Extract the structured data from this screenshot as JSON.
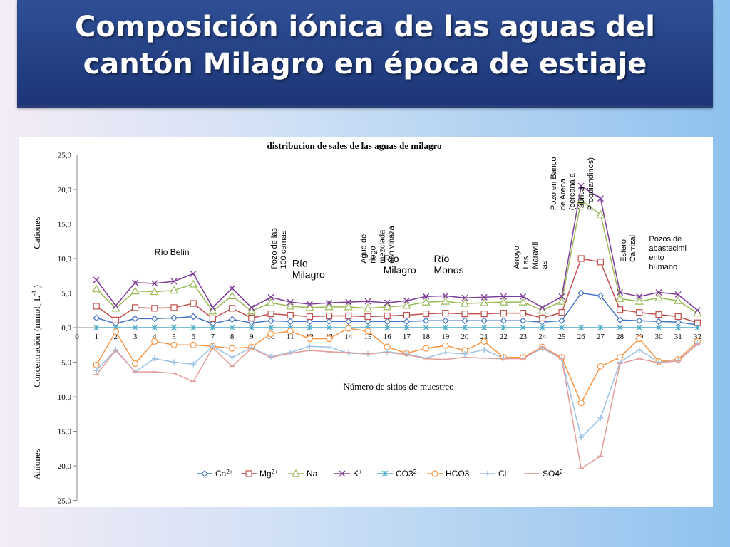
{
  "slide": {
    "title_line1": "Composición iónica de las aguas del",
    "title_line2": "cantón Milagro en época de estiaje"
  },
  "chart_data": {
    "type": "line",
    "title": "distribucion de sales de las aguas de milagro",
    "xlabel": "Número  de sitios de muestreo",
    "ylabel": "Concentración (mmolc L-1 )",
    "ylabel_top": "Cationes",
    "ylabel_bottom": "Aniones",
    "x": [
      1,
      2,
      3,
      4,
      5,
      6,
      7,
      8,
      9,
      10,
      11,
      12,
      13,
      14,
      15,
      16,
      17,
      18,
      19,
      20,
      21,
      22,
      23,
      24,
      25,
      26,
      27,
      28,
      29,
      30,
      31,
      32
    ],
    "x_ticks": [
      "0",
      "1",
      "2",
      "3",
      "4",
      "5",
      "6",
      "7",
      "8",
      "9",
      "10",
      "11",
      "12",
      "13",
      "14",
      "15",
      "16",
      "17",
      "18",
      "19",
      "20",
      "21",
      "22",
      "23",
      "24",
      "25",
      "26",
      "27",
      "28",
      "29",
      "30",
      "31",
      "32"
    ],
    "y_ticks": [
      "25,0",
      "20,0",
      "15,0",
      "10,0",
      "5,0",
      "0,0",
      "5,0",
      "10,0",
      "15,0",
      "20,0",
      "25,0"
    ],
    "ylim": [
      -25,
      25
    ],
    "legend_position": "bottom",
    "series": [
      {
        "name": "Ca",
        "sup": "2+",
        "color": "#4472c4",
        "marker": "diamond",
        "values": [
          1.4,
          0.6,
          1.3,
          1.3,
          1.4,
          1.6,
          0.6,
          1.2,
          0.7,
          1.0,
          0.9,
          0.9,
          0.9,
          0.9,
          0.9,
          0.9,
          0.9,
          1.0,
          1.0,
          1.0,
          1.0,
          1.0,
          1.0,
          0.8,
          1.0,
          5.0,
          4.6,
          1.1,
          1.0,
          0.9,
          0.8,
          0.4
        ]
      },
      {
        "name": "Mg",
        "sup": "2+",
        "color": "#c0504d",
        "marker": "square",
        "values": [
          3.1,
          1.1,
          2.9,
          2.8,
          2.9,
          3.5,
          1.3,
          2.8,
          1.4,
          2.0,
          1.8,
          1.6,
          1.7,
          1.7,
          1.6,
          1.7,
          1.8,
          2.0,
          2.1,
          2.0,
          2.0,
          2.1,
          2.1,
          1.4,
          2.2,
          10.0,
          9.5,
          2.6,
          2.2,
          1.9,
          1.6,
          0.7
        ]
      },
      {
        "name": "Na",
        "sup": "+",
        "color": "#9bbb59",
        "marker": "triangle",
        "values": [
          5.6,
          2.8,
          5.3,
          5.2,
          5.4,
          6.3,
          2.4,
          4.6,
          2.4,
          3.6,
          3.1,
          2.9,
          3.0,
          3.0,
          2.8,
          3.0,
          3.2,
          3.7,
          3.8,
          3.5,
          3.6,
          3.7,
          3.7,
          2.5,
          3.8,
          18.4,
          16.4,
          4.2,
          3.8,
          4.3,
          3.9,
          2.1
        ]
      },
      {
        "name": "K",
        "sup": "+",
        "color": "#7f3f98",
        "marker": "x",
        "values": [
          6.9,
          3.2,
          6.5,
          6.4,
          6.7,
          7.8,
          2.9,
          5.7,
          2.9,
          4.4,
          3.7,
          3.4,
          3.6,
          3.7,
          3.8,
          3.6,
          3.9,
          4.5,
          4.6,
          4.3,
          4.4,
          4.5,
          4.5,
          2.9,
          4.5,
          20.5,
          18.7,
          5.1,
          4.5,
          5.1,
          4.8,
          2.5
        ]
      },
      {
        "name": "CO3",
        "sup": "2-",
        "color": "#4aacc6",
        "marker": "asterisk",
        "values": [
          0,
          0,
          0,
          0,
          0,
          0,
          0,
          0,
          0,
          0,
          0,
          0,
          0,
          0,
          0,
          0,
          0,
          0,
          0,
          0,
          0,
          0,
          0,
          0,
          0,
          0,
          0,
          0,
          0,
          0,
          0,
          0
        ]
      },
      {
        "name": "HCO3",
        "sup": "-",
        "color": "#f79646",
        "marker": "circle",
        "values": [
          -5.4,
          -0.6,
          -5.2,
          -2.0,
          -2.5,
          -2.5,
          -2.7,
          -3.0,
          -2.8,
          -0.9,
          -0.5,
          -1.6,
          -1.6,
          -0.1,
          -0.5,
          -2.8,
          -3.7,
          -3.0,
          -2.6,
          -3.3,
          -2.0,
          -4.3,
          -4.3,
          -2.8,
          -4.3,
          -10.9,
          -5.6,
          -4.3,
          -1.6,
          -4.9,
          -4.6,
          -2.0
        ]
      },
      {
        "name": "Cl",
        "sup": "-",
        "color": "#9dc3e6",
        "marker": "plus",
        "values": [
          -6.2,
          -3.2,
          -6.4,
          -4.5,
          -5.0,
          -5.3,
          -2.7,
          -4.3,
          -2.9,
          -4.2,
          -3.6,
          -2.7,
          -2.8,
          -3.7,
          -3.8,
          -3.5,
          -3.8,
          -4.4,
          -3.6,
          -3.8,
          -3.2,
          -4.4,
          -4.4,
          -3.0,
          -4.5,
          -15.9,
          -13.1,
          -5.0,
          -3.2,
          -5.0,
          -4.8,
          -2.3
        ]
      },
      {
        "name": "SO4",
        "sup": "2-",
        "color": "#e39c9a",
        "marker": "dash",
        "values": [
          -6.8,
          -3.3,
          -6.4,
          -6.4,
          -6.6,
          -7.8,
          -2.9,
          -5.6,
          -3.0,
          -4.3,
          -3.7,
          -3.3,
          -3.5,
          -3.6,
          -3.8,
          -3.6,
          -3.9,
          -4.5,
          -4.6,
          -4.3,
          -4.4,
          -4.5,
          -4.5,
          -2.8,
          -4.5,
          -20.4,
          -18.6,
          -5.2,
          -4.5,
          -5.1,
          -4.8,
          -2.4
        ]
      }
    ],
    "annotations": [
      {
        "lines": [
          "Río Belin"
        ],
        "x": 4,
        "y": 10.5,
        "rotate": false,
        "size": 12
      },
      {
        "lines": [
          "Pozo de las",
          "100 camas"
        ],
        "x": 10.3,
        "y": 8.5,
        "rotate": true,
        "size": 11
      },
      {
        "lines": [
          "Río",
          "Milagro"
        ],
        "x": 11.1,
        "y": 8.8,
        "rotate": false,
        "size": 14
      },
      {
        "lines": [
          "Agua de",
          "riego",
          "mezclada",
          "con vinaza"
        ],
        "x": 14.9,
        "y": 9.3,
        "rotate": true,
        "size": 11
      },
      {
        "lines": [
          "Río",
          "Milagro"
        ],
        "x": 15.8,
        "y": 9.5,
        "rotate": false,
        "size": 14
      },
      {
        "lines": [
          "Río",
          "Monos"
        ],
        "x": 18.4,
        "y": 9.5,
        "rotate": false,
        "size": 14
      },
      {
        "lines": [
          "Arroyo",
          "Las",
          "Maravill",
          "as"
        ],
        "x": 22.8,
        "y": 8.5,
        "rotate": true,
        "size": 11
      },
      {
        "lines": [
          "Pozo en Banco",
          "de Arena",
          "(cercana a",
          "fábrica",
          "Proquiandinos)"
        ],
        "x": 24.7,
        "y": 17.0,
        "rotate": true,
        "size": 11
      },
      {
        "lines": [
          "Estero",
          "Carrizal"
        ],
        "x": 28.3,
        "y": 9.5,
        "rotate": true,
        "size": 11
      },
      {
        "lines": [
          "Pozos de",
          "abastecimi",
          "ento",
          "humano"
        ],
        "x": 29.5,
        "y": 12.5,
        "rotate": false,
        "size": 11
      }
    ]
  }
}
